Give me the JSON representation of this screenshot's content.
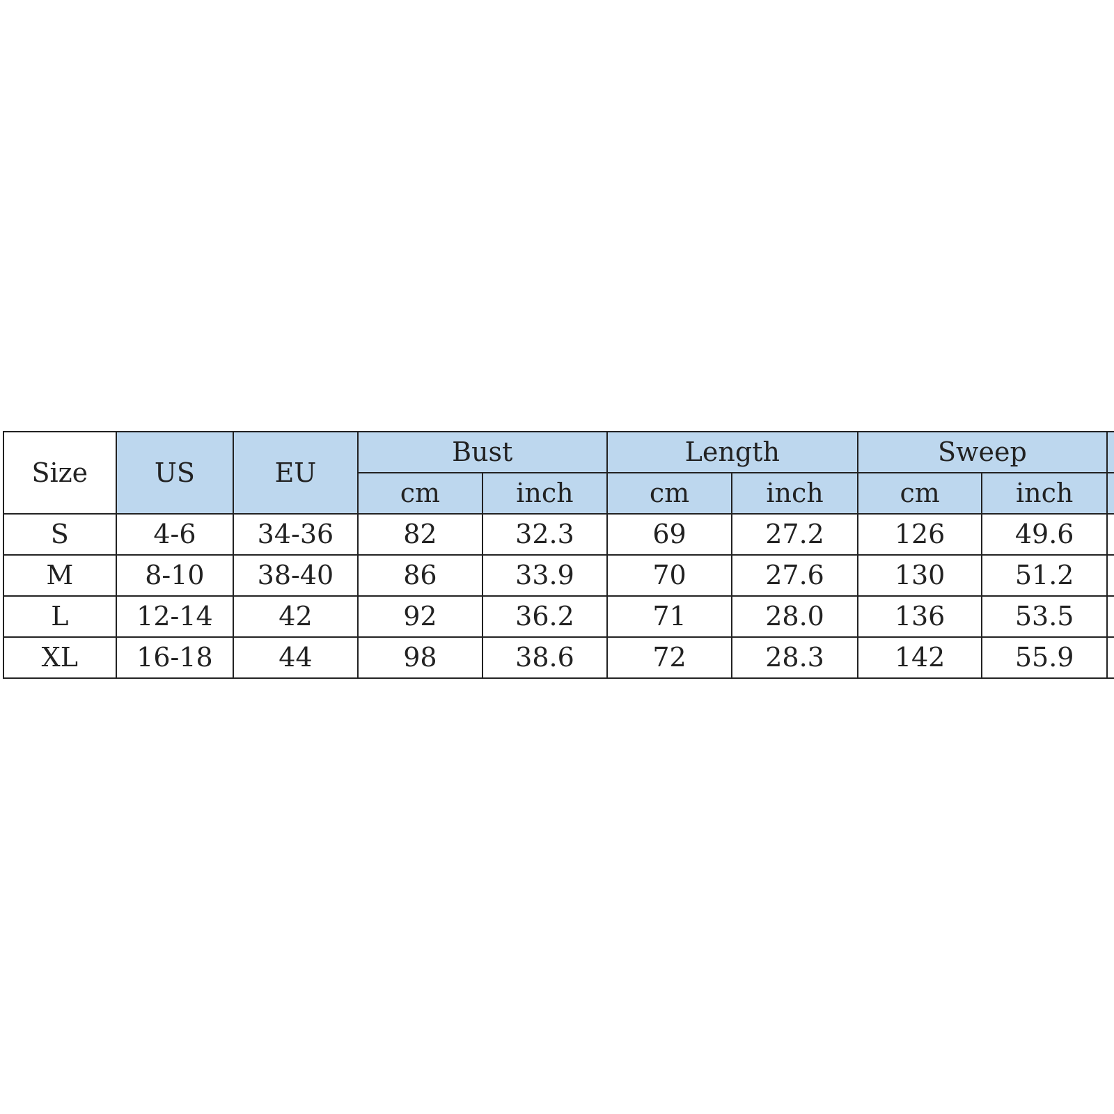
{
  "header": {
    "size": "Size",
    "us": "US",
    "eu": "EU",
    "groups": [
      "Bust",
      "Length",
      "Sweep"
    ],
    "units": [
      "cm",
      "inch",
      "cm",
      "inch",
      "cm",
      "inch"
    ]
  },
  "header_color": "#bdd7ee",
  "rows": [
    [
      "S",
      "4-6",
      "34-36",
      "82",
      "32.3",
      "69",
      "27.2",
      "126",
      "49.6"
    ],
    [
      "M",
      "8-10",
      "38-40",
      "86",
      "33.9",
      "70",
      "27.6",
      "130",
      "51.2"
    ],
    [
      "L",
      "12-14",
      "42",
      "92",
      "36.2",
      "71",
      "28.0",
      "136",
      "53.5"
    ],
    [
      "XL",
      "16-18",
      "44",
      "98",
      "38.6",
      "72",
      "28.3",
      "142",
      "55.9"
    ]
  ]
}
